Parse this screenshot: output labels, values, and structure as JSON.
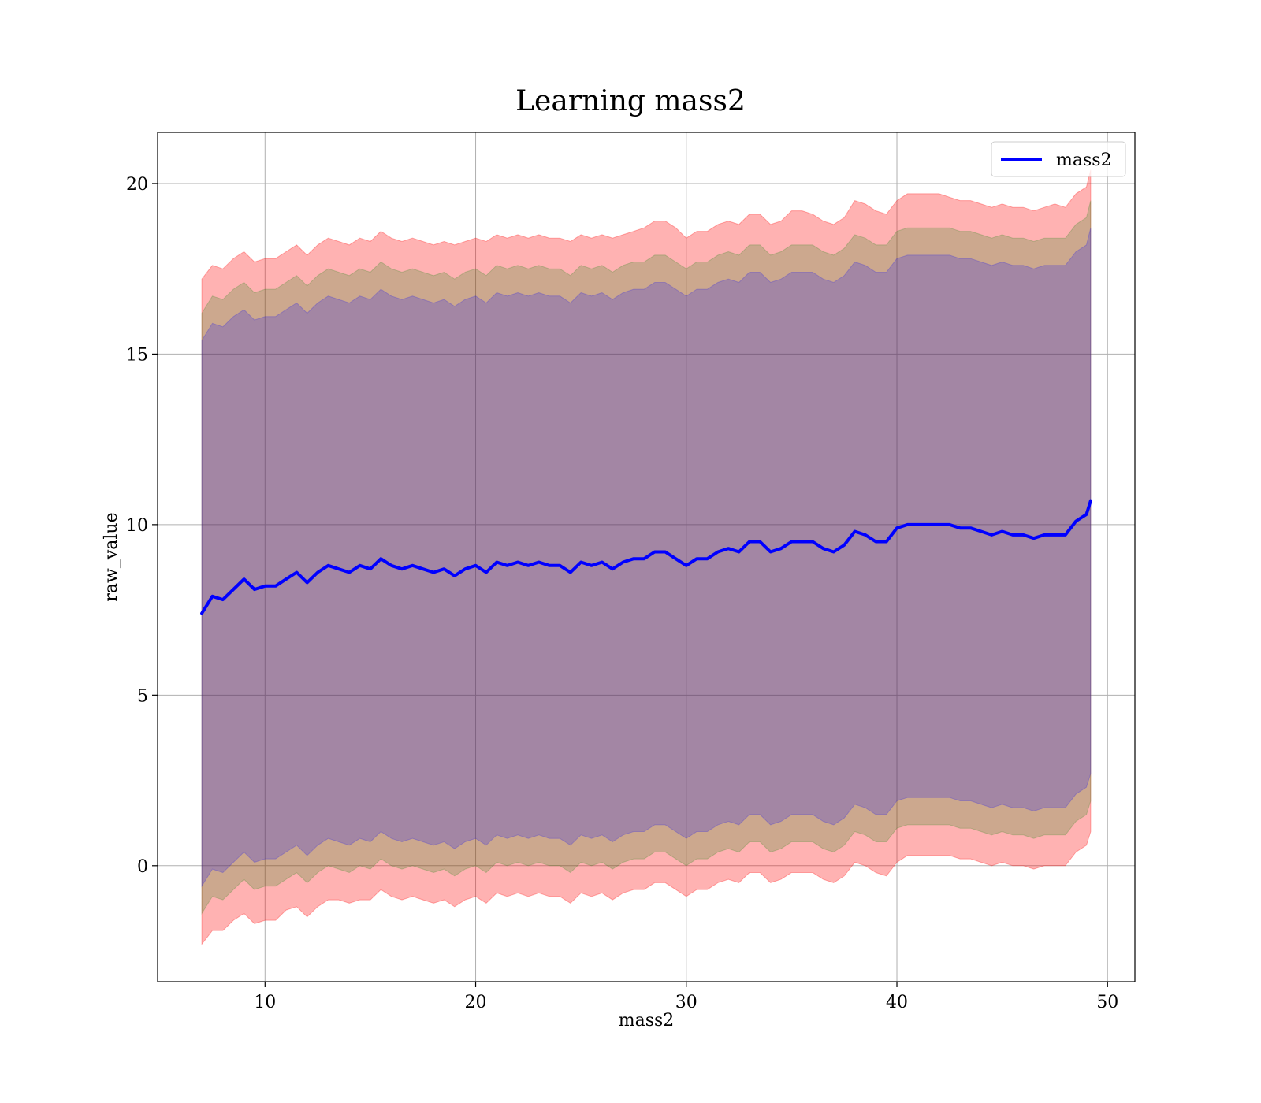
{
  "chart_data": {
    "type": "line",
    "title": "Learning mass2",
    "xlabel": "mass2",
    "ylabel": "raw_value",
    "xlim": [
      4.9,
      51.3
    ],
    "ylim": [
      -3.4,
      21.5
    ],
    "xticks": [
      10,
      20,
      30,
      40,
      50
    ],
    "yticks": [
      0,
      5,
      10,
      15,
      20
    ],
    "grid": true,
    "legend_position": "top-right",
    "series": [
      {
        "name": "mass2",
        "color": "#0000ff",
        "x": [
          7.0,
          7.5,
          8.0,
          8.5,
          9.0,
          9.5,
          10.0,
          10.5,
          11.0,
          11.5,
          12.0,
          12.5,
          13.0,
          13.5,
          14.0,
          14.5,
          15.0,
          15.5,
          16.0,
          16.5,
          17.0,
          17.5,
          18.0,
          18.5,
          19.0,
          19.5,
          20.0,
          20.5,
          21.0,
          21.5,
          22.0,
          22.5,
          23.0,
          23.5,
          24.0,
          24.5,
          25.0,
          25.5,
          26.0,
          26.5,
          27.0,
          27.5,
          28.0,
          28.5,
          29.0,
          29.5,
          30.0,
          30.5,
          31.0,
          31.5,
          32.0,
          32.5,
          33.0,
          33.5,
          34.0,
          34.5,
          35.0,
          35.5,
          36.0,
          36.5,
          37.0,
          37.5,
          38.0,
          38.5,
          39.0,
          39.5,
          40.0,
          40.5,
          41.0,
          41.5,
          42.0,
          42.5,
          43.0,
          43.5,
          44.0,
          44.5,
          45.0,
          45.5,
          46.0,
          46.5,
          47.0,
          47.5,
          48.0,
          48.5,
          49.0,
          49.2
        ],
        "values": [
          7.4,
          7.9,
          7.8,
          8.1,
          8.4,
          8.1,
          8.2,
          8.2,
          8.4,
          8.6,
          8.3,
          8.6,
          8.8,
          8.7,
          8.6,
          8.8,
          8.7,
          9.0,
          8.8,
          8.7,
          8.8,
          8.7,
          8.6,
          8.7,
          8.5,
          8.7,
          8.8,
          8.6,
          8.9,
          8.8,
          8.9,
          8.8,
          8.9,
          8.8,
          8.8,
          8.6,
          8.9,
          8.8,
          8.9,
          8.7,
          8.9,
          9.0,
          9.0,
          9.2,
          9.2,
          9.0,
          8.8,
          9.0,
          9.0,
          9.2,
          9.3,
          9.2,
          9.5,
          9.5,
          9.2,
          9.3,
          9.5,
          9.5,
          9.5,
          9.3,
          9.2,
          9.4,
          9.8,
          9.7,
          9.5,
          9.5,
          9.9,
          10.0,
          10.0,
          10.0,
          10.0,
          10.0,
          9.9,
          9.9,
          9.8,
          9.7,
          9.8,
          9.7,
          9.7,
          9.6,
          9.7,
          9.7,
          9.7,
          10.1,
          10.3,
          10.7
        ]
      }
    ],
    "bands": [
      {
        "role": "outer",
        "color": "#ff0000",
        "opacity": 0.3,
        "upper": [
          17.2,
          17.6,
          17.5,
          17.8,
          18.0,
          17.7,
          17.8,
          17.8,
          18.0,
          18.2,
          17.9,
          18.2,
          18.4,
          18.3,
          18.2,
          18.4,
          18.3,
          18.6,
          18.4,
          18.3,
          18.4,
          18.3,
          18.2,
          18.3,
          18.2,
          18.3,
          18.4,
          18.3,
          18.5,
          18.4,
          18.5,
          18.4,
          18.5,
          18.4,
          18.4,
          18.3,
          18.5,
          18.4,
          18.5,
          18.4,
          18.5,
          18.6,
          18.7,
          18.9,
          18.9,
          18.7,
          18.4,
          18.6,
          18.6,
          18.8,
          18.9,
          18.8,
          19.1,
          19.1,
          18.8,
          18.9,
          19.2,
          19.2,
          19.1,
          18.9,
          18.8,
          19.0,
          19.5,
          19.4,
          19.2,
          19.1,
          19.5,
          19.7,
          19.7,
          19.7,
          19.7,
          19.6,
          19.5,
          19.5,
          19.4,
          19.3,
          19.4,
          19.3,
          19.3,
          19.2,
          19.3,
          19.4,
          19.3,
          19.7,
          19.9,
          20.4
        ],
        "lower": [
          -2.3,
          -1.9,
          -1.9,
          -1.6,
          -1.4,
          -1.7,
          -1.6,
          -1.6,
          -1.3,
          -1.2,
          -1.5,
          -1.2,
          -1.0,
          -1.0,
          -1.1,
          -1.0,
          -1.0,
          -0.7,
          -0.9,
          -1.0,
          -0.9,
          -1.0,
          -1.1,
          -1.0,
          -1.2,
          -1.0,
          -0.9,
          -1.1,
          -0.8,
          -0.9,
          -0.8,
          -0.9,
          -0.8,
          -0.9,
          -0.9,
          -1.1,
          -0.8,
          -0.9,
          -0.8,
          -1.0,
          -0.8,
          -0.7,
          -0.7,
          -0.5,
          -0.5,
          -0.7,
          -0.9,
          -0.7,
          -0.7,
          -0.5,
          -0.4,
          -0.5,
          -0.2,
          -0.2,
          -0.5,
          -0.4,
          -0.2,
          -0.2,
          -0.2,
          -0.4,
          -0.5,
          -0.3,
          0.1,
          0.0,
          -0.2,
          -0.3,
          0.1,
          0.3,
          0.3,
          0.3,
          0.3,
          0.3,
          0.2,
          0.2,
          0.1,
          0.0,
          0.1,
          0.0,
          0.0,
          -0.1,
          0.0,
          0.0,
          0.0,
          0.4,
          0.6,
          1.0
        ]
      },
      {
        "role": "middle",
        "color": "#008000",
        "opacity": 0.2,
        "upper": [
          16.2,
          16.7,
          16.6,
          16.9,
          17.1,
          16.8,
          16.9,
          16.9,
          17.1,
          17.3,
          17.0,
          17.3,
          17.5,
          17.4,
          17.3,
          17.5,
          17.4,
          17.7,
          17.5,
          17.4,
          17.5,
          17.4,
          17.3,
          17.4,
          17.2,
          17.4,
          17.5,
          17.3,
          17.6,
          17.5,
          17.6,
          17.5,
          17.6,
          17.5,
          17.5,
          17.3,
          17.6,
          17.5,
          17.6,
          17.4,
          17.6,
          17.7,
          17.7,
          17.9,
          17.9,
          17.7,
          17.5,
          17.7,
          17.7,
          17.9,
          18.0,
          17.9,
          18.2,
          18.2,
          17.9,
          18.0,
          18.2,
          18.2,
          18.2,
          18.0,
          17.9,
          18.1,
          18.5,
          18.4,
          18.2,
          18.2,
          18.6,
          18.7,
          18.7,
          18.7,
          18.7,
          18.7,
          18.6,
          18.6,
          18.5,
          18.4,
          18.5,
          18.4,
          18.4,
          18.3,
          18.4,
          18.4,
          18.4,
          18.8,
          19.0,
          19.5
        ],
        "lower": [
          -1.4,
          -0.9,
          -1.0,
          -0.7,
          -0.4,
          -0.7,
          -0.6,
          -0.6,
          -0.4,
          -0.2,
          -0.5,
          -0.2,
          0.0,
          -0.1,
          -0.2,
          0.0,
          -0.1,
          0.2,
          0.0,
          -0.1,
          0.0,
          -0.1,
          -0.2,
          -0.1,
          -0.3,
          -0.1,
          0.0,
          -0.2,
          0.1,
          0.0,
          0.1,
          0.0,
          0.1,
          0.0,
          0.0,
          -0.2,
          0.1,
          0.0,
          0.1,
          -0.1,
          0.1,
          0.2,
          0.2,
          0.4,
          0.4,
          0.2,
          0.0,
          0.2,
          0.2,
          0.4,
          0.5,
          0.4,
          0.7,
          0.7,
          0.4,
          0.5,
          0.7,
          0.7,
          0.7,
          0.5,
          0.4,
          0.6,
          1.0,
          0.9,
          0.7,
          0.7,
          1.1,
          1.2,
          1.2,
          1.2,
          1.2,
          1.2,
          1.1,
          1.1,
          1.0,
          0.9,
          1.0,
          0.9,
          0.9,
          0.8,
          0.9,
          0.9,
          0.9,
          1.3,
          1.5,
          1.9
        ]
      },
      {
        "role": "inner",
        "color": "#0000ff",
        "opacity": 0.2,
        "upper": [
          15.4,
          15.9,
          15.8,
          16.1,
          16.3,
          16.0,
          16.1,
          16.1,
          16.3,
          16.5,
          16.2,
          16.5,
          16.7,
          16.6,
          16.5,
          16.7,
          16.6,
          16.9,
          16.7,
          16.6,
          16.7,
          16.6,
          16.5,
          16.6,
          16.4,
          16.6,
          16.7,
          16.5,
          16.8,
          16.7,
          16.8,
          16.7,
          16.8,
          16.7,
          16.7,
          16.5,
          16.8,
          16.7,
          16.8,
          16.6,
          16.8,
          16.9,
          16.9,
          17.1,
          17.1,
          16.9,
          16.7,
          16.9,
          16.9,
          17.1,
          17.2,
          17.1,
          17.4,
          17.4,
          17.1,
          17.2,
          17.4,
          17.4,
          17.4,
          17.2,
          17.1,
          17.3,
          17.7,
          17.6,
          17.4,
          17.4,
          17.8,
          17.9,
          17.9,
          17.9,
          17.9,
          17.9,
          17.8,
          17.8,
          17.7,
          17.6,
          17.7,
          17.6,
          17.6,
          17.5,
          17.6,
          17.6,
          17.6,
          18.0,
          18.2,
          18.7
        ],
        "lower": [
          -0.6,
          -0.1,
          -0.2,
          0.1,
          0.4,
          0.1,
          0.2,
          0.2,
          0.4,
          0.6,
          0.3,
          0.6,
          0.8,
          0.7,
          0.6,
          0.8,
          0.7,
          1.0,
          0.8,
          0.7,
          0.8,
          0.7,
          0.6,
          0.7,
          0.5,
          0.7,
          0.8,
          0.6,
          0.9,
          0.8,
          0.9,
          0.8,
          0.9,
          0.8,
          0.8,
          0.6,
          0.9,
          0.8,
          0.9,
          0.7,
          0.9,
          1.0,
          1.0,
          1.2,
          1.2,
          1.0,
          0.8,
          1.0,
          1.0,
          1.2,
          1.3,
          1.2,
          1.5,
          1.5,
          1.2,
          1.3,
          1.5,
          1.5,
          1.5,
          1.3,
          1.2,
          1.4,
          1.8,
          1.7,
          1.5,
          1.5,
          1.9,
          2.0,
          2.0,
          2.0,
          2.0,
          2.0,
          1.9,
          1.9,
          1.8,
          1.7,
          1.8,
          1.7,
          1.7,
          1.6,
          1.7,
          1.7,
          1.7,
          2.1,
          2.3,
          2.7
        ]
      }
    ]
  }
}
